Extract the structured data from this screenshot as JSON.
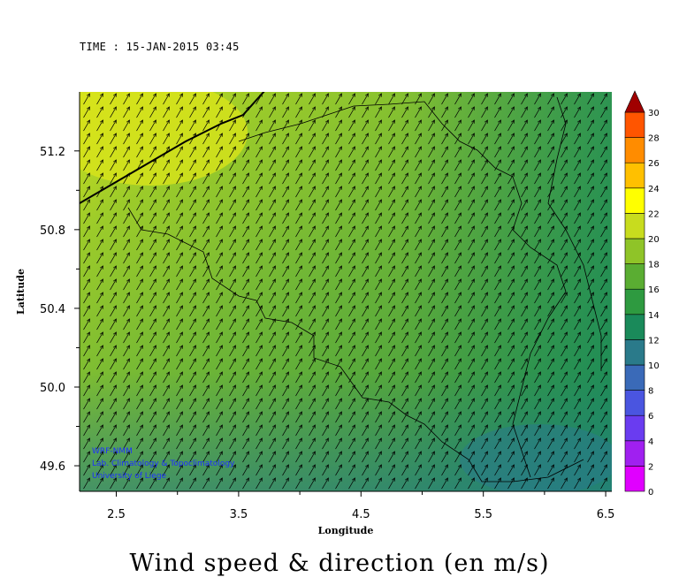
{
  "time_label": "TIME : 15-JAN-2015 03:45",
  "caption": "Wind speed & direction (en m/s)",
  "credits": [
    "WRF-NMM",
    "Lab. Climatology & Topoclimatology",
    "University of Liege"
  ],
  "colors": {
    "credit_text": "#1f2fff",
    "border": "#000000",
    "arrow": "#000000"
  },
  "chart_data": {
    "type": "heatmap",
    "title": "",
    "xlabel": "Longitude",
    "ylabel": "Latitude",
    "xlim": [
      2.2,
      6.55
    ],
    "ylim": [
      49.47,
      51.5
    ],
    "x_ticks": [
      2.5,
      3.5,
      4.5,
      5.5,
      6.5
    ],
    "x_tick_labels": [
      "2.5",
      "3.5",
      "4.5",
      "5.5",
      "6.5"
    ],
    "y_ticks": [
      49.6,
      50.0,
      50.4,
      50.8,
      51.2
    ],
    "y_tick_labels": [
      "49.6",
      "50.0",
      "50.4",
      "50.8",
      "51.2"
    ],
    "wind_direction_to_deg": 60,
    "colorbar": {
      "unit": "m/s",
      "labels": [
        "0",
        "2",
        "4",
        "6",
        "8",
        "10",
        "12",
        "14",
        "16",
        "18",
        "20",
        "22",
        "24",
        "26",
        "28",
        "30"
      ],
      "levels": [
        0,
        2,
        4,
        6,
        8,
        10,
        12,
        14,
        16,
        18,
        20,
        22,
        24,
        26,
        28,
        30
      ],
      "colors": [
        "#e000ff",
        "#a020f0",
        "#6a3cf0",
        "#4a55e0",
        "#3a6ab8",
        "#2a7a8a",
        "#1a8a5a",
        "#2e9a40",
        "#5aad32",
        "#8fc428",
        "#c8dc1e",
        "#ffff00",
        "#ffc000",
        "#ff8c00",
        "#ff5500",
        "#ff1a00",
        "#c00000",
        "#a00000"
      ]
    },
    "grid": false,
    "legend": "colorbar-right"
  }
}
